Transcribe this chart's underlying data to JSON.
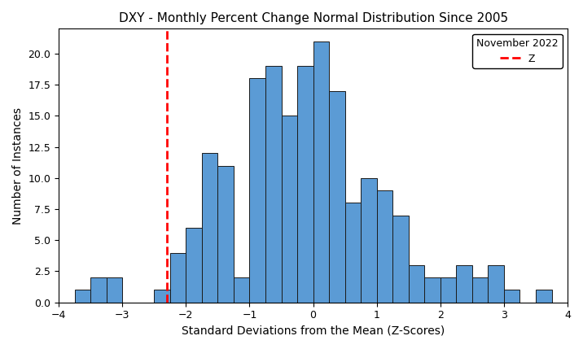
{
  "title": "DXY - Monthly Percent Change Normal Distribution Since 2005",
  "xlabel": "Standard Deviations from the Mean (Z-Scores)",
  "ylabel": "Number of Instances",
  "xlim": [
    -4,
    4
  ],
  "ylim": [
    0,
    22
  ],
  "yticks": [
    0.0,
    2.5,
    5.0,
    7.5,
    10.0,
    12.5,
    15.0,
    17.5,
    20.0
  ],
  "xticks": [
    -4,
    -3,
    -2,
    -1,
    0,
    1,
    2,
    3,
    4
  ],
  "bar_color": "#5b9bd5",
  "bar_edgecolor": "#1a1a1a",
  "vline_x": -2.3,
  "vline_color": "red",
  "vline_style": "--",
  "legend_title": "November 2022",
  "legend_label": "Z",
  "bar_centers": [
    -3.625,
    -3.375,
    -3.125,
    -2.875,
    -2.625,
    -2.375,
    -2.125,
    -1.875,
    -1.625,
    -1.375,
    -1.125,
    -0.875,
    -0.625,
    -0.375,
    -0.125,
    0.125,
    0.375,
    0.625,
    0.875,
    1.125,
    1.375,
    1.625,
    1.875,
    2.125,
    2.375,
    2.625,
    2.875,
    3.125,
    3.375,
    3.625
  ],
  "bar_heights": [
    1,
    2,
    2,
    0,
    0,
    1,
    4,
    6,
    12,
    11,
    2,
    18,
    19,
    15,
    19,
    21,
    17,
    8,
    10,
    9,
    7,
    3,
    2,
    2,
    3,
    2,
    3,
    1,
    0,
    1
  ],
  "bin_width": 0.25,
  "figsize": [
    7.16,
    4.29
  ],
  "dpi": 100
}
